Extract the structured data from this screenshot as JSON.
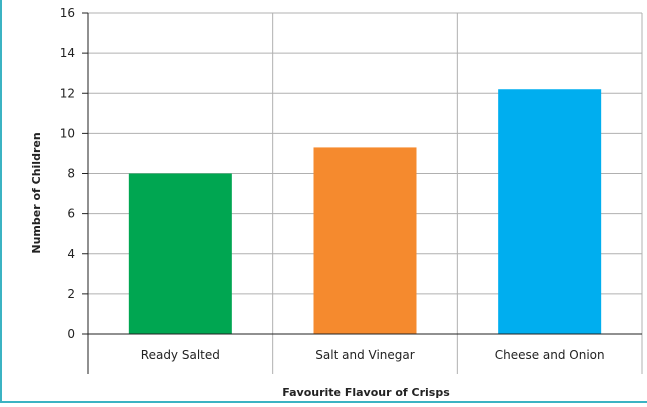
{
  "chart_data": {
    "type": "bar",
    "categories": [
      "Ready Salted",
      "Salt and Vinegar",
      "Cheese and Onion"
    ],
    "values": [
      8,
      9.3,
      12.2
    ],
    "colors": [
      "#00a651",
      "#f58a2e",
      "#00aeef"
    ],
    "xlabel": "Favourite Flavour of Crisps",
    "ylabel": "Number of Children",
    "ylim": [
      0,
      16
    ],
    "yticks": [
      0,
      2,
      4,
      6,
      8,
      10,
      12,
      14,
      16
    ],
    "grid": "vertical-and-horizontal",
    "grid_color": "#b0b0b0",
    "axis_color": "#222222"
  }
}
